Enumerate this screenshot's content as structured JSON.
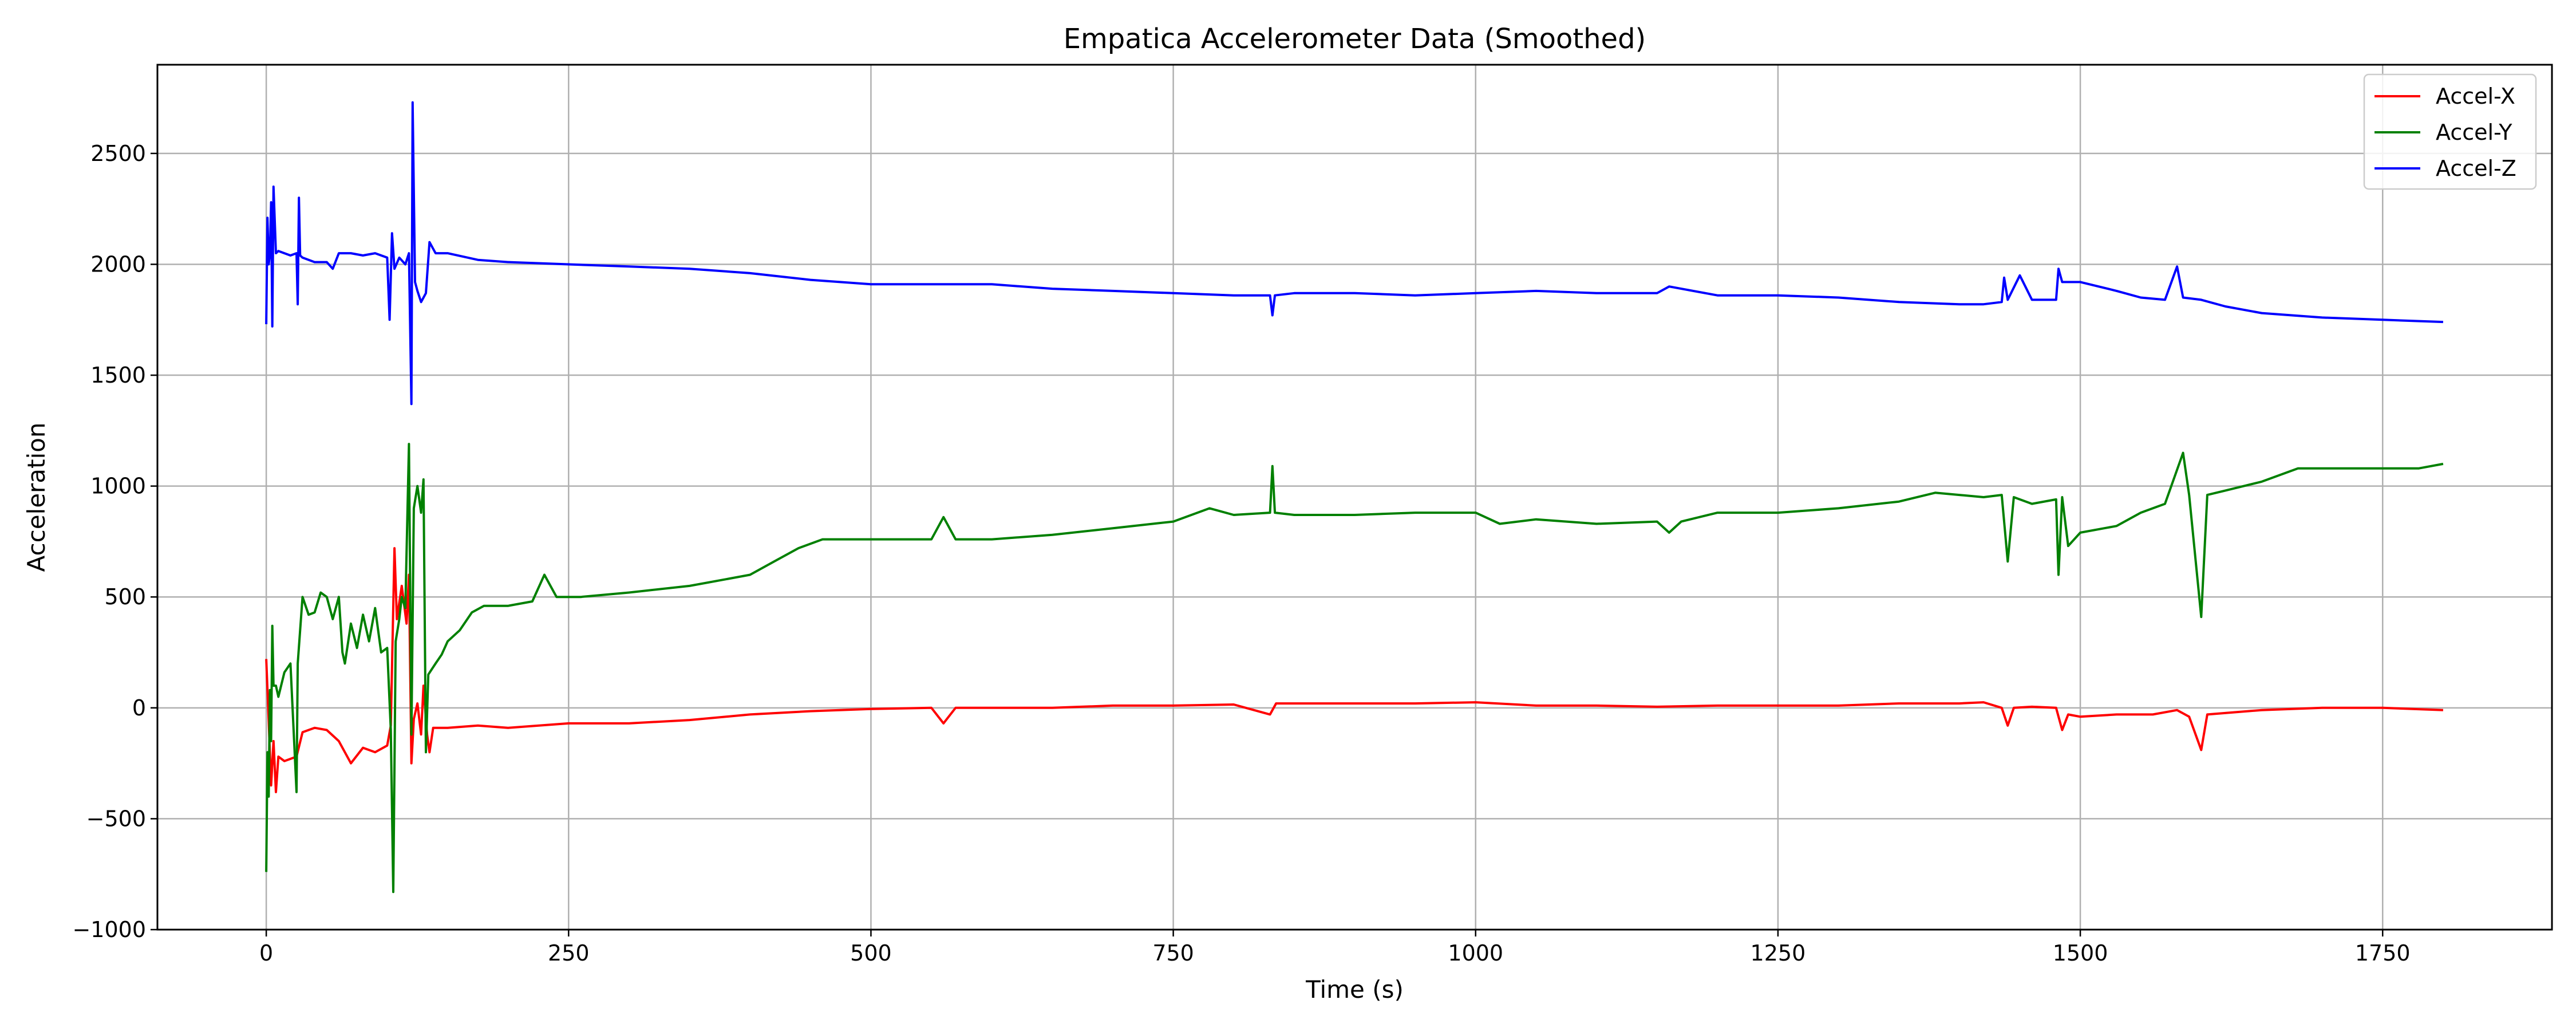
{
  "chart_data": {
    "type": "line",
    "title": "Empatica Accelerometer Data (Smoothed)",
    "xlabel": "Time (s)",
    "ylabel": "Acceleration",
    "xlim": [
      -90,
      1890
    ],
    "ylim": [
      -1000,
      2900
    ],
    "x_ticks": [
      0,
      250,
      500,
      750,
      1000,
      1250,
      1500,
      1750
    ],
    "y_ticks": [
      -1000,
      -500,
      0,
      500,
      1000,
      1500,
      2000,
      2500
    ],
    "x_tick_labels": [
      "0",
      "250",
      "500",
      "750",
      "1000",
      "1250",
      "1500",
      "1750"
    ],
    "y_tick_labels": [
      "−1000",
      "−500",
      "0",
      "500",
      "1000",
      "1500",
      "2000",
      "2500"
    ],
    "grid": true,
    "legend_position": "top-right",
    "series": [
      {
        "name": "Accel-X",
        "color": "#ff0000",
        "points": [
          [
            0,
            220
          ],
          [
            2,
            -60
          ],
          [
            4,
            -350
          ],
          [
            6,
            -150
          ],
          [
            8,
            -380
          ],
          [
            10,
            -220
          ],
          [
            15,
            -240
          ],
          [
            20,
            -230
          ],
          [
            25,
            -220
          ],
          [
            30,
            -110
          ],
          [
            40,
            -90
          ],
          [
            50,
            -100
          ],
          [
            60,
            -150
          ],
          [
            70,
            -250
          ],
          [
            80,
            -180
          ],
          [
            90,
            -200
          ],
          [
            100,
            -170
          ],
          [
            103,
            -80
          ],
          [
            106,
            720
          ],
          [
            108,
            400
          ],
          [
            112,
            550
          ],
          [
            116,
            380
          ],
          [
            118,
            600
          ],
          [
            120,
            -250
          ],
          [
            122,
            -50
          ],
          [
            125,
            20
          ],
          [
            128,
            -120
          ],
          [
            130,
            100
          ],
          [
            133,
            -120
          ],
          [
            135,
            -200
          ],
          [
            138,
            -90
          ],
          [
            150,
            -90
          ],
          [
            175,
            -80
          ],
          [
            200,
            -90
          ],
          [
            250,
            -70
          ],
          [
            300,
            -70
          ],
          [
            350,
            -55
          ],
          [
            400,
            -30
          ],
          [
            450,
            -15
          ],
          [
            500,
            -5
          ],
          [
            550,
            0
          ],
          [
            560,
            -70
          ],
          [
            570,
            0
          ],
          [
            600,
            0
          ],
          [
            650,
            0
          ],
          [
            700,
            10
          ],
          [
            750,
            10
          ],
          [
            800,
            15
          ],
          [
            830,
            -30
          ],
          [
            835,
            20
          ],
          [
            900,
            20
          ],
          [
            950,
            20
          ],
          [
            1000,
            25
          ],
          [
            1050,
            10
          ],
          [
            1100,
            10
          ],
          [
            1150,
            5
          ],
          [
            1200,
            10
          ],
          [
            1250,
            10
          ],
          [
            1300,
            10
          ],
          [
            1350,
            20
          ],
          [
            1400,
            20
          ],
          [
            1420,
            25
          ],
          [
            1435,
            0
          ],
          [
            1440,
            -80
          ],
          [
            1445,
            0
          ],
          [
            1460,
            5
          ],
          [
            1480,
            0
          ],
          [
            1485,
            -100
          ],
          [
            1490,
            -30
          ],
          [
            1500,
            -40
          ],
          [
            1530,
            -30
          ],
          [
            1560,
            -30
          ],
          [
            1580,
            -10
          ],
          [
            1590,
            -40
          ],
          [
            1600,
            -190
          ],
          [
            1605,
            -30
          ],
          [
            1650,
            -10
          ],
          [
            1700,
            0
          ],
          [
            1750,
            0
          ],
          [
            1800,
            -10
          ]
        ]
      },
      {
        "name": "Accel-Y",
        "color": "#008000",
        "points": [
          [
            0,
            -740
          ],
          [
            1,
            -200
          ],
          [
            2,
            -400
          ],
          [
            3,
            80
          ],
          [
            4,
            -150
          ],
          [
            5,
            370
          ],
          [
            6,
            100
          ],
          [
            8,
            100
          ],
          [
            10,
            50
          ],
          [
            15,
            160
          ],
          [
            20,
            200
          ],
          [
            25,
            -380
          ],
          [
            26,
            200
          ],
          [
            30,
            500
          ],
          [
            35,
            420
          ],
          [
            40,
            430
          ],
          [
            45,
            520
          ],
          [
            50,
            500
          ],
          [
            55,
            400
          ],
          [
            60,
            500
          ],
          [
            63,
            250
          ],
          [
            65,
            200
          ],
          [
            70,
            380
          ],
          [
            75,
            270
          ],
          [
            80,
            420
          ],
          [
            85,
            300
          ],
          [
            90,
            450
          ],
          [
            95,
            250
          ],
          [
            100,
            270
          ],
          [
            103,
            -100
          ],
          [
            105,
            -830
          ],
          [
            107,
            300
          ],
          [
            110,
            400
          ],
          [
            112,
            500
          ],
          [
            115,
            450
          ],
          [
            118,
            1190
          ],
          [
            120,
            -120
          ],
          [
            122,
            900
          ],
          [
            125,
            1000
          ],
          [
            128,
            880
          ],
          [
            130,
            1030
          ],
          [
            132,
            -200
          ],
          [
            134,
            150
          ],
          [
            140,
            200
          ],
          [
            145,
            240
          ],
          [
            150,
            300
          ],
          [
            160,
            350
          ],
          [
            170,
            430
          ],
          [
            180,
            460
          ],
          [
            200,
            460
          ],
          [
            220,
            480
          ],
          [
            230,
            600
          ],
          [
            240,
            500
          ],
          [
            260,
            500
          ],
          [
            300,
            520
          ],
          [
            350,
            550
          ],
          [
            380,
            580
          ],
          [
            400,
            600
          ],
          [
            420,
            660
          ],
          [
            440,
            720
          ],
          [
            460,
            760
          ],
          [
            480,
            760
          ],
          [
            500,
            760
          ],
          [
            550,
            760
          ],
          [
            560,
            860
          ],
          [
            570,
            760
          ],
          [
            600,
            760
          ],
          [
            650,
            780
          ],
          [
            700,
            810
          ],
          [
            750,
            840
          ],
          [
            780,
            900
          ],
          [
            800,
            870
          ],
          [
            830,
            880
          ],
          [
            832,
            1090
          ],
          [
            834,
            880
          ],
          [
            850,
            870
          ],
          [
            900,
            870
          ],
          [
            950,
            880
          ],
          [
            1000,
            880
          ],
          [
            1020,
            830
          ],
          [
            1050,
            850
          ],
          [
            1100,
            830
          ],
          [
            1150,
            840
          ],
          [
            1160,
            790
          ],
          [
            1170,
            840
          ],
          [
            1200,
            880
          ],
          [
            1250,
            880
          ],
          [
            1300,
            900
          ],
          [
            1350,
            930
          ],
          [
            1380,
            970
          ],
          [
            1400,
            960
          ],
          [
            1420,
            950
          ],
          [
            1435,
            960
          ],
          [
            1440,
            660
          ],
          [
            1445,
            950
          ],
          [
            1460,
            920
          ],
          [
            1480,
            940
          ],
          [
            1482,
            600
          ],
          [
            1485,
            950
          ],
          [
            1490,
            730
          ],
          [
            1500,
            790
          ],
          [
            1530,
            820
          ],
          [
            1550,
            880
          ],
          [
            1570,
            920
          ],
          [
            1585,
            1150
          ],
          [
            1590,
            960
          ],
          [
            1600,
            410
          ],
          [
            1605,
            960
          ],
          [
            1620,
            980
          ],
          [
            1650,
            1020
          ],
          [
            1680,
            1080
          ],
          [
            1700,
            1080
          ],
          [
            1750,
            1080
          ],
          [
            1780,
            1080
          ],
          [
            1800,
            1100
          ]
        ]
      },
      {
        "name": "Accel-Z",
        "color": "#0000ff",
        "points": [
          [
            0,
            1730
          ],
          [
            1,
            2210
          ],
          [
            2,
            2000
          ],
          [
            3,
            2050
          ],
          [
            4,
            2280
          ],
          [
            5,
            1720
          ],
          [
            6,
            2350
          ],
          [
            8,
            2050
          ],
          [
            10,
            2060
          ],
          [
            15,
            2050
          ],
          [
            20,
            2040
          ],
          [
            25,
            2050
          ],
          [
            26,
            1820
          ],
          [
            27,
            2300
          ],
          [
            28,
            2040
          ],
          [
            30,
            2030
          ],
          [
            40,
            2010
          ],
          [
            50,
            2010
          ],
          [
            55,
            1980
          ],
          [
            60,
            2050
          ],
          [
            70,
            2050
          ],
          [
            80,
            2040
          ],
          [
            90,
            2050
          ],
          [
            100,
            2030
          ],
          [
            102,
            1750
          ],
          [
            104,
            2140
          ],
          [
            106,
            1980
          ],
          [
            110,
            2030
          ],
          [
            115,
            2000
          ],
          [
            118,
            2050
          ],
          [
            120,
            1370
          ],
          [
            121,
            2730
          ],
          [
            123,
            1920
          ],
          [
            125,
            1880
          ],
          [
            128,
            1830
          ],
          [
            132,
            1870
          ],
          [
            135,
            2100
          ],
          [
            140,
            2050
          ],
          [
            150,
            2050
          ],
          [
            175,
            2020
          ],
          [
            200,
            2010
          ],
          [
            250,
            2000
          ],
          [
            300,
            1990
          ],
          [
            350,
            1980
          ],
          [
            400,
            1960
          ],
          [
            450,
            1930
          ],
          [
            500,
            1910
          ],
          [
            550,
            1910
          ],
          [
            600,
            1910
          ],
          [
            650,
            1890
          ],
          [
            700,
            1880
          ],
          [
            750,
            1870
          ],
          [
            800,
            1860
          ],
          [
            830,
            1860
          ],
          [
            832,
            1770
          ],
          [
            834,
            1860
          ],
          [
            850,
            1870
          ],
          [
            900,
            1870
          ],
          [
            950,
            1860
          ],
          [
            1000,
            1870
          ],
          [
            1050,
            1880
          ],
          [
            1100,
            1870
          ],
          [
            1150,
            1870
          ],
          [
            1160,
            1900
          ],
          [
            1200,
            1860
          ],
          [
            1250,
            1860
          ],
          [
            1300,
            1850
          ],
          [
            1350,
            1830
          ],
          [
            1400,
            1820
          ],
          [
            1420,
            1820
          ],
          [
            1435,
            1830
          ],
          [
            1437,
            1940
          ],
          [
            1440,
            1840
          ],
          [
            1450,
            1950
          ],
          [
            1460,
            1840
          ],
          [
            1480,
            1840
          ],
          [
            1482,
            1980
          ],
          [
            1485,
            1920
          ],
          [
            1500,
            1920
          ],
          [
            1530,
            1880
          ],
          [
            1550,
            1850
          ],
          [
            1570,
            1840
          ],
          [
            1580,
            1990
          ],
          [
            1585,
            1850
          ],
          [
            1600,
            1840
          ],
          [
            1620,
            1810
          ],
          [
            1650,
            1780
          ],
          [
            1700,
            1760
          ],
          [
            1750,
            1750
          ],
          [
            1800,
            1740
          ]
        ]
      }
    ]
  }
}
